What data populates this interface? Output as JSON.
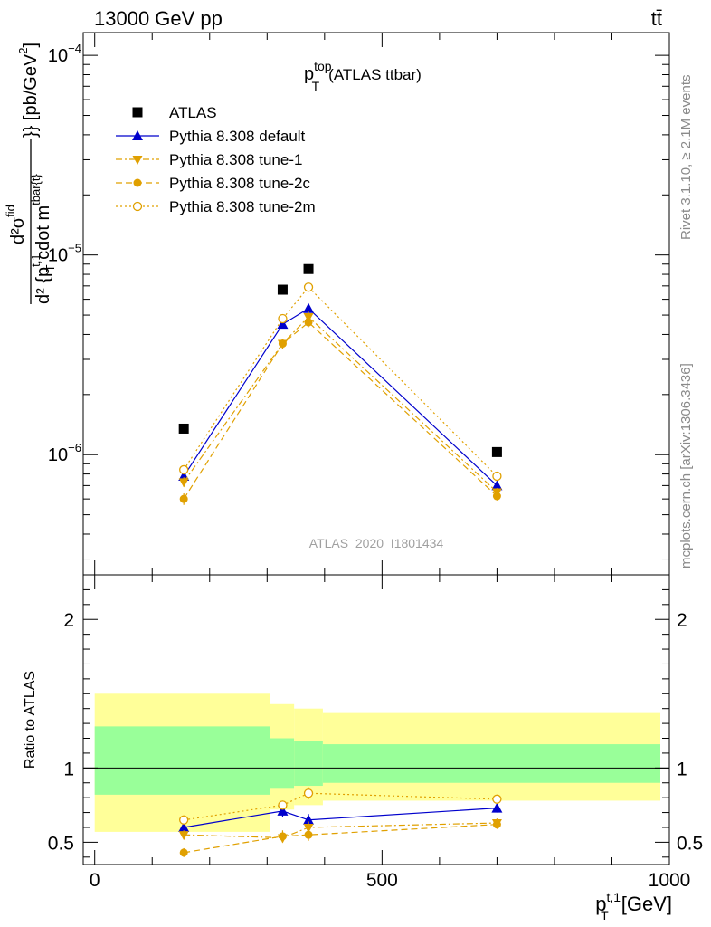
{
  "header": {
    "left": "13000 GeV pp",
    "right": "tt̄"
  },
  "side": {
    "rivet": "Rivet 3.1.10, ≥ 2.1M events",
    "mcplots": "mcplots.cern.ch [arXiv:1306.3436]"
  },
  "chart_data": [
    {
      "type": "scatter",
      "panel": "main",
      "title": "p_T^top (ATLAS ttbar)",
      "title_main": "p",
      "title_sup": "top",
      "title_sub": "T",
      "title_rest": "(ATLAS ttbar)",
      "watermark": "ATLAS_2020_I1801434",
      "ylabel": "d²σ^{fid} / d² {p_T^{t,1} cdot m^{tbar{t}}} [pb/GeV²]",
      "ylabel_parts": {
        "numerator": "d²σ",
        "numerator_sup": "fid",
        "denominator": "d² {p",
        "denominator_sub": "T",
        "denominator_sup": "t,1",
        "denominator_rest": " cdot m",
        "denominator_sup2": "tbar{t}",
        "denominator_end": "}}",
        "units": "}} [pb/GeV",
        "units_sup": "2",
        "units_end": "]"
      },
      "yscale": "log",
      "ylim": [
        2.5e-07,
        0.00013
      ],
      "xlim": [
        -20,
        1000
      ],
      "y_ticks": [
        {
          "label": "10",
          "sup": "−4",
          "value": 0.0001
        },
        {
          "label": "10",
          "sup": "−5",
          "value": 1e-05
        },
        {
          "label": "10",
          "sup": "−6",
          "value": 1e-06
        }
      ],
      "legend_position": "top-left",
      "series": [
        {
          "name": "ATLAS",
          "color": "#000000",
          "marker": "square",
          "line": "none",
          "x": [
            155,
            327,
            372,
            700
          ],
          "y": [
            1.35e-06,
            6.7e-06,
            8.5e-06,
            1.03e-06
          ],
          "err": [
            0,
            0,
            0,
            0
          ]
        },
        {
          "name": "Pythia 8.308 default",
          "color": "#0000cc",
          "marker": "triangle-up",
          "line": "solid",
          "x": [
            155,
            327,
            372,
            700
          ],
          "y": [
            7.8e-07,
            4.5e-06,
            5.4e-06,
            7e-07
          ],
          "err": [
            4e-08,
            2.2e-07,
            3e-07,
            3e-08
          ]
        },
        {
          "name": "Pythia 8.308 tune-1",
          "color": "#e0a000",
          "marker": "triangle-down",
          "line": "dashdot",
          "x": [
            155,
            327,
            372,
            700
          ],
          "y": [
            7.3e-07,
            3.6e-06,
            4.9e-06,
            6.5e-07
          ],
          "err": [
            4e-08,
            2e-07,
            3e-07,
            3e-08
          ]
        },
        {
          "name": "Pythia 8.308 tune-2c",
          "color": "#e0a000",
          "marker": "circle",
          "line": "dashed",
          "x": [
            155,
            327,
            372,
            700
          ],
          "y": [
            6e-07,
            3.6e-06,
            4.6e-06,
            6.2e-07
          ],
          "err": [
            4e-08,
            2e-07,
            2.5e-07,
            3e-08
          ]
        },
        {
          "name": "Pythia 8.308 tune-2m",
          "color": "#e0a000",
          "marker": "circle-open",
          "line": "dotted",
          "x": [
            155,
            327,
            372,
            700
          ],
          "y": [
            8.4e-07,
            4.8e-06,
            6.9e-06,
            7.8e-07
          ],
          "err": [
            4e-08,
            2.2e-07,
            3e-07,
            3e-08
          ]
        }
      ]
    },
    {
      "type": "scatter",
      "panel": "ratio",
      "ylabel": "Ratio to ATLAS",
      "ylim": [
        0.35,
        2.3
      ],
      "xlim": [
        -20,
        1000
      ],
      "xlabel": "p_T^{t,1} [GeV]",
      "xlabel_parts": {
        "main": "p",
        "sub": "T",
        "sup": "t,1",
        "rest": " [GeV]"
      },
      "x_ticks": [
        0,
        500,
        1000
      ],
      "y_ticks": [
        0.5,
        1,
        2
      ],
      "bands": [
        {
          "x0": 0,
          "x1": 305,
          "yellow": [
            0.57,
            1.5
          ],
          "green": [
            0.82,
            1.28
          ]
        },
        {
          "x0": 305,
          "x1": 347,
          "yellow": [
            0.72,
            1.43
          ],
          "green": [
            0.86,
            1.2
          ]
        },
        {
          "x0": 347,
          "x1": 397,
          "yellow": [
            0.75,
            1.4
          ],
          "green": [
            0.88,
            1.18
          ]
        },
        {
          "x0": 397,
          "x1": 1000,
          "yellow": [
            0.78,
            1.37
          ],
          "green": [
            0.9,
            1.16
          ]
        }
      ],
      "series": [
        {
          "name": "Pythia 8.308 default",
          "color": "#0000cc",
          "marker": "triangle-up",
          "line": "solid",
          "x": [
            155,
            327,
            372,
            700
          ],
          "y": [
            0.6,
            0.71,
            0.65,
            0.73
          ],
          "err": [
            0.02,
            0.04,
            0.04,
            0.03
          ]
        },
        {
          "name": "Pythia 8.308 tune-1",
          "color": "#e0a000",
          "marker": "triangle-down",
          "line": "dashdot",
          "x": [
            155,
            327,
            372,
            700
          ],
          "y": [
            0.55,
            0.53,
            0.6,
            0.63
          ],
          "err": [
            0.03,
            0.03,
            0.04,
            0.03
          ]
        },
        {
          "name": "Pythia 8.308 tune-2c",
          "color": "#e0a000",
          "marker": "circle",
          "line": "dashed",
          "x": [
            155,
            327,
            372,
            700
          ],
          "y": [
            0.43,
            0.54,
            0.55,
            0.62
          ],
          "err": [
            0.03,
            0.04,
            0.04,
            0.03
          ]
        },
        {
          "name": "Pythia 8.308 tune-2m",
          "color": "#e0a000",
          "marker": "circle-open",
          "line": "dotted",
          "x": [
            155,
            327,
            372,
            700
          ],
          "y": [
            0.65,
            0.75,
            0.83,
            0.79
          ],
          "err": [
            0.03,
            0.03,
            0.04,
            0.03
          ]
        }
      ]
    }
  ]
}
